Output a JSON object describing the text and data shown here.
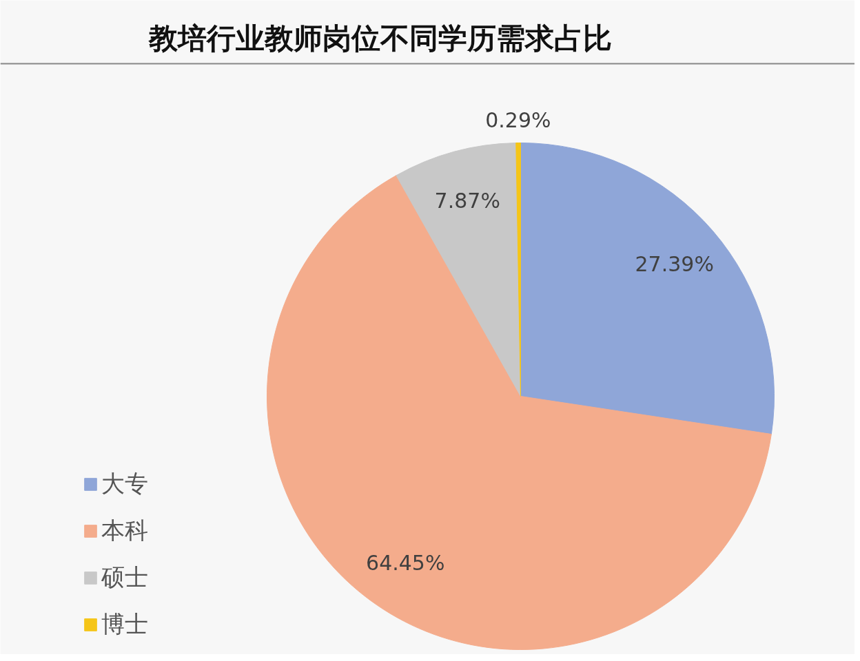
{
  "chart_data": {
    "type": "pie",
    "title": "教培行业教师岗位不同学历需求占比",
    "categories": [
      "大专",
      "本科",
      "硕士",
      "博士"
    ],
    "values": [
      27.39,
      64.45,
      7.87,
      0.29
    ],
    "colors": [
      "#8fa6d8",
      "#f4ac8c",
      "#c8c8c8",
      "#f5c518"
    ],
    "value_labels": [
      "27.39%",
      "64.45%",
      "7.87%",
      "0.29%"
    ],
    "legend": "bottom left"
  }
}
